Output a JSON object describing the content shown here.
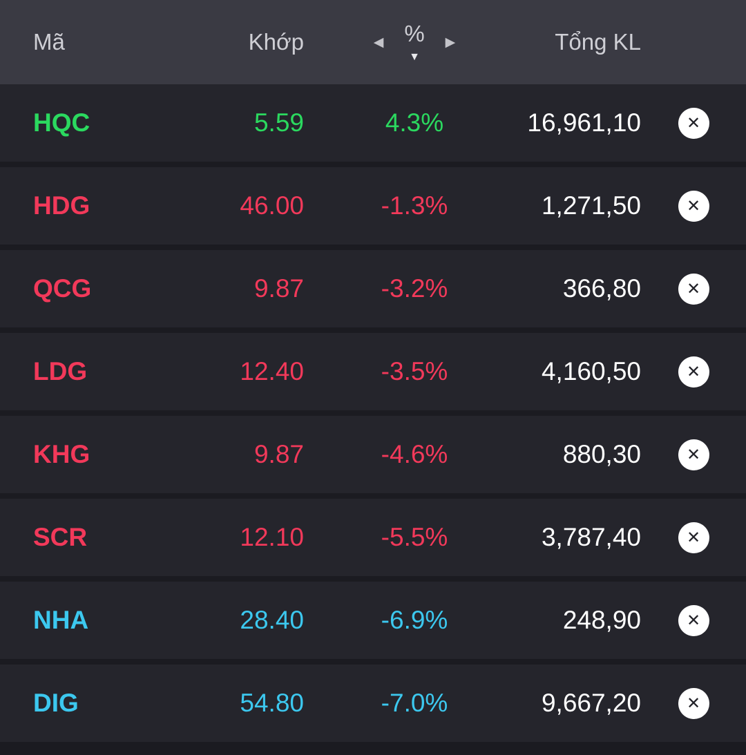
{
  "header": {
    "col_symbol": "Mã",
    "col_price": "Khớp",
    "col_percent": "%",
    "col_total": "Tổng KL"
  },
  "icons": {
    "prev": "◀",
    "next": "▶",
    "sort_desc": "▼",
    "close": "✕"
  },
  "colors": {
    "up": "#2bd95f",
    "down": "#f2395a",
    "floor": "#3cc8ef",
    "total": "#ffffff"
  },
  "rows": [
    {
      "symbol": "HQC",
      "price": "5.59",
      "percent": "4.3%",
      "total": "16,961,10",
      "trend": "up"
    },
    {
      "symbol": "HDG",
      "price": "46.00",
      "percent": "-1.3%",
      "total": "1,271,50",
      "trend": "down"
    },
    {
      "symbol": "QCG",
      "price": "9.87",
      "percent": "-3.2%",
      "total": "366,80",
      "trend": "down"
    },
    {
      "symbol": "LDG",
      "price": "12.40",
      "percent": "-3.5%",
      "total": "4,160,50",
      "trend": "down"
    },
    {
      "symbol": "KHG",
      "price": "9.87",
      "percent": "-4.6%",
      "total": "880,30",
      "trend": "down"
    },
    {
      "symbol": "SCR",
      "price": "12.10",
      "percent": "-5.5%",
      "total": "3,787,40",
      "trend": "down"
    },
    {
      "symbol": "NHA",
      "price": "28.40",
      "percent": "-6.9%",
      "total": "248,90",
      "trend": "floor"
    },
    {
      "symbol": "DIG",
      "price": "54.80",
      "percent": "-7.0%",
      "total": "9,667,20",
      "trend": "floor"
    }
  ]
}
